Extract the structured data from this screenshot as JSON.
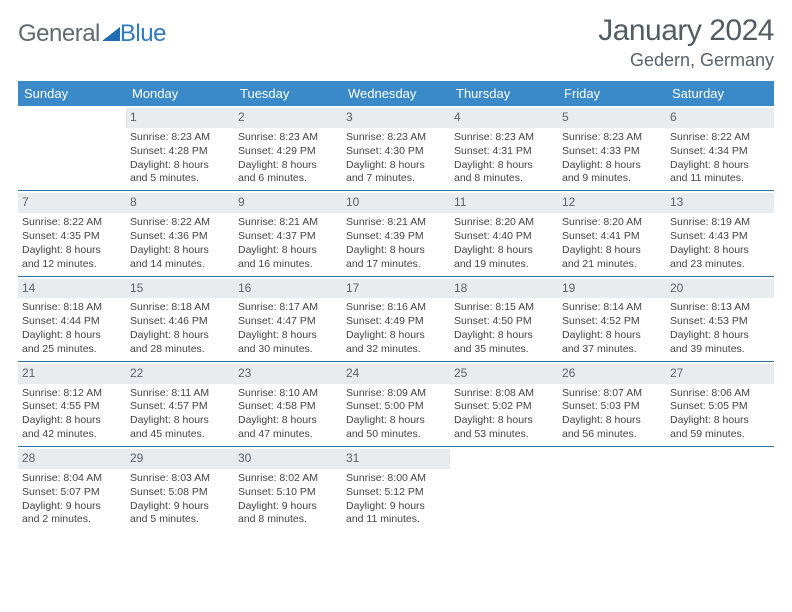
{
  "logo": {
    "word1": "General",
    "word2": "Blue"
  },
  "title": "January 2024",
  "location": "Gedern, Germany",
  "colors": {
    "header_bg": "#3a8ac9",
    "header_text": "#ffffff",
    "band_bg": "#e9ecee",
    "rule": "#2f6fa8",
    "text": "#3a3a3a",
    "title_text": "#545c63",
    "logo_gray": "#606a71",
    "logo_blue": "#2f7bbf",
    "page_bg": "#ffffff"
  },
  "dow": [
    "Sunday",
    "Monday",
    "Tuesday",
    "Wednesday",
    "Thursday",
    "Friday",
    "Saturday"
  ],
  "weeks": [
    [
      {
        "n": "",
        "l1": "",
        "l2": "",
        "l3": "",
        "l4": ""
      },
      {
        "n": "1",
        "l1": "Sunrise: 8:23 AM",
        "l2": "Sunset: 4:28 PM",
        "l3": "Daylight: 8 hours",
        "l4": "and 5 minutes."
      },
      {
        "n": "2",
        "l1": "Sunrise: 8:23 AM",
        "l2": "Sunset: 4:29 PM",
        "l3": "Daylight: 8 hours",
        "l4": "and 6 minutes."
      },
      {
        "n": "3",
        "l1": "Sunrise: 8:23 AM",
        "l2": "Sunset: 4:30 PM",
        "l3": "Daylight: 8 hours",
        "l4": "and 7 minutes."
      },
      {
        "n": "4",
        "l1": "Sunrise: 8:23 AM",
        "l2": "Sunset: 4:31 PM",
        "l3": "Daylight: 8 hours",
        "l4": "and 8 minutes."
      },
      {
        "n": "5",
        "l1": "Sunrise: 8:23 AM",
        "l2": "Sunset: 4:33 PM",
        "l3": "Daylight: 8 hours",
        "l4": "and 9 minutes."
      },
      {
        "n": "6",
        "l1": "Sunrise: 8:22 AM",
        "l2": "Sunset: 4:34 PM",
        "l3": "Daylight: 8 hours",
        "l4": "and 11 minutes."
      }
    ],
    [
      {
        "n": "7",
        "l1": "Sunrise: 8:22 AM",
        "l2": "Sunset: 4:35 PM",
        "l3": "Daylight: 8 hours",
        "l4": "and 12 minutes."
      },
      {
        "n": "8",
        "l1": "Sunrise: 8:22 AM",
        "l2": "Sunset: 4:36 PM",
        "l3": "Daylight: 8 hours",
        "l4": "and 14 minutes."
      },
      {
        "n": "9",
        "l1": "Sunrise: 8:21 AM",
        "l2": "Sunset: 4:37 PM",
        "l3": "Daylight: 8 hours",
        "l4": "and 16 minutes."
      },
      {
        "n": "10",
        "l1": "Sunrise: 8:21 AM",
        "l2": "Sunset: 4:39 PM",
        "l3": "Daylight: 8 hours",
        "l4": "and 17 minutes."
      },
      {
        "n": "11",
        "l1": "Sunrise: 8:20 AM",
        "l2": "Sunset: 4:40 PM",
        "l3": "Daylight: 8 hours",
        "l4": "and 19 minutes."
      },
      {
        "n": "12",
        "l1": "Sunrise: 8:20 AM",
        "l2": "Sunset: 4:41 PM",
        "l3": "Daylight: 8 hours",
        "l4": "and 21 minutes."
      },
      {
        "n": "13",
        "l1": "Sunrise: 8:19 AM",
        "l2": "Sunset: 4:43 PM",
        "l3": "Daylight: 8 hours",
        "l4": "and 23 minutes."
      }
    ],
    [
      {
        "n": "14",
        "l1": "Sunrise: 8:18 AM",
        "l2": "Sunset: 4:44 PM",
        "l3": "Daylight: 8 hours",
        "l4": "and 25 minutes."
      },
      {
        "n": "15",
        "l1": "Sunrise: 8:18 AM",
        "l2": "Sunset: 4:46 PM",
        "l3": "Daylight: 8 hours",
        "l4": "and 28 minutes."
      },
      {
        "n": "16",
        "l1": "Sunrise: 8:17 AM",
        "l2": "Sunset: 4:47 PM",
        "l3": "Daylight: 8 hours",
        "l4": "and 30 minutes."
      },
      {
        "n": "17",
        "l1": "Sunrise: 8:16 AM",
        "l2": "Sunset: 4:49 PM",
        "l3": "Daylight: 8 hours",
        "l4": "and 32 minutes."
      },
      {
        "n": "18",
        "l1": "Sunrise: 8:15 AM",
        "l2": "Sunset: 4:50 PM",
        "l3": "Daylight: 8 hours",
        "l4": "and 35 minutes."
      },
      {
        "n": "19",
        "l1": "Sunrise: 8:14 AM",
        "l2": "Sunset: 4:52 PM",
        "l3": "Daylight: 8 hours",
        "l4": "and 37 minutes."
      },
      {
        "n": "20",
        "l1": "Sunrise: 8:13 AM",
        "l2": "Sunset: 4:53 PM",
        "l3": "Daylight: 8 hours",
        "l4": "and 39 minutes."
      }
    ],
    [
      {
        "n": "21",
        "l1": "Sunrise: 8:12 AM",
        "l2": "Sunset: 4:55 PM",
        "l3": "Daylight: 8 hours",
        "l4": "and 42 minutes."
      },
      {
        "n": "22",
        "l1": "Sunrise: 8:11 AM",
        "l2": "Sunset: 4:57 PM",
        "l3": "Daylight: 8 hours",
        "l4": "and 45 minutes."
      },
      {
        "n": "23",
        "l1": "Sunrise: 8:10 AM",
        "l2": "Sunset: 4:58 PM",
        "l3": "Daylight: 8 hours",
        "l4": "and 47 minutes."
      },
      {
        "n": "24",
        "l1": "Sunrise: 8:09 AM",
        "l2": "Sunset: 5:00 PM",
        "l3": "Daylight: 8 hours",
        "l4": "and 50 minutes."
      },
      {
        "n": "25",
        "l1": "Sunrise: 8:08 AM",
        "l2": "Sunset: 5:02 PM",
        "l3": "Daylight: 8 hours",
        "l4": "and 53 minutes."
      },
      {
        "n": "26",
        "l1": "Sunrise: 8:07 AM",
        "l2": "Sunset: 5:03 PM",
        "l3": "Daylight: 8 hours",
        "l4": "and 56 minutes."
      },
      {
        "n": "27",
        "l1": "Sunrise: 8:06 AM",
        "l2": "Sunset: 5:05 PM",
        "l3": "Daylight: 8 hours",
        "l4": "and 59 minutes."
      }
    ],
    [
      {
        "n": "28",
        "l1": "Sunrise: 8:04 AM",
        "l2": "Sunset: 5:07 PM",
        "l3": "Daylight: 9 hours",
        "l4": "and 2 minutes."
      },
      {
        "n": "29",
        "l1": "Sunrise: 8:03 AM",
        "l2": "Sunset: 5:08 PM",
        "l3": "Daylight: 9 hours",
        "l4": "and 5 minutes."
      },
      {
        "n": "30",
        "l1": "Sunrise: 8:02 AM",
        "l2": "Sunset: 5:10 PM",
        "l3": "Daylight: 9 hours",
        "l4": "and 8 minutes."
      },
      {
        "n": "31",
        "l1": "Sunrise: 8:00 AM",
        "l2": "Sunset: 5:12 PM",
        "l3": "Daylight: 9 hours",
        "l4": "and 11 minutes."
      },
      {
        "n": "",
        "l1": "",
        "l2": "",
        "l3": "",
        "l4": ""
      },
      {
        "n": "",
        "l1": "",
        "l2": "",
        "l3": "",
        "l4": ""
      },
      {
        "n": "",
        "l1": "",
        "l2": "",
        "l3": "",
        "l4": ""
      }
    ]
  ]
}
